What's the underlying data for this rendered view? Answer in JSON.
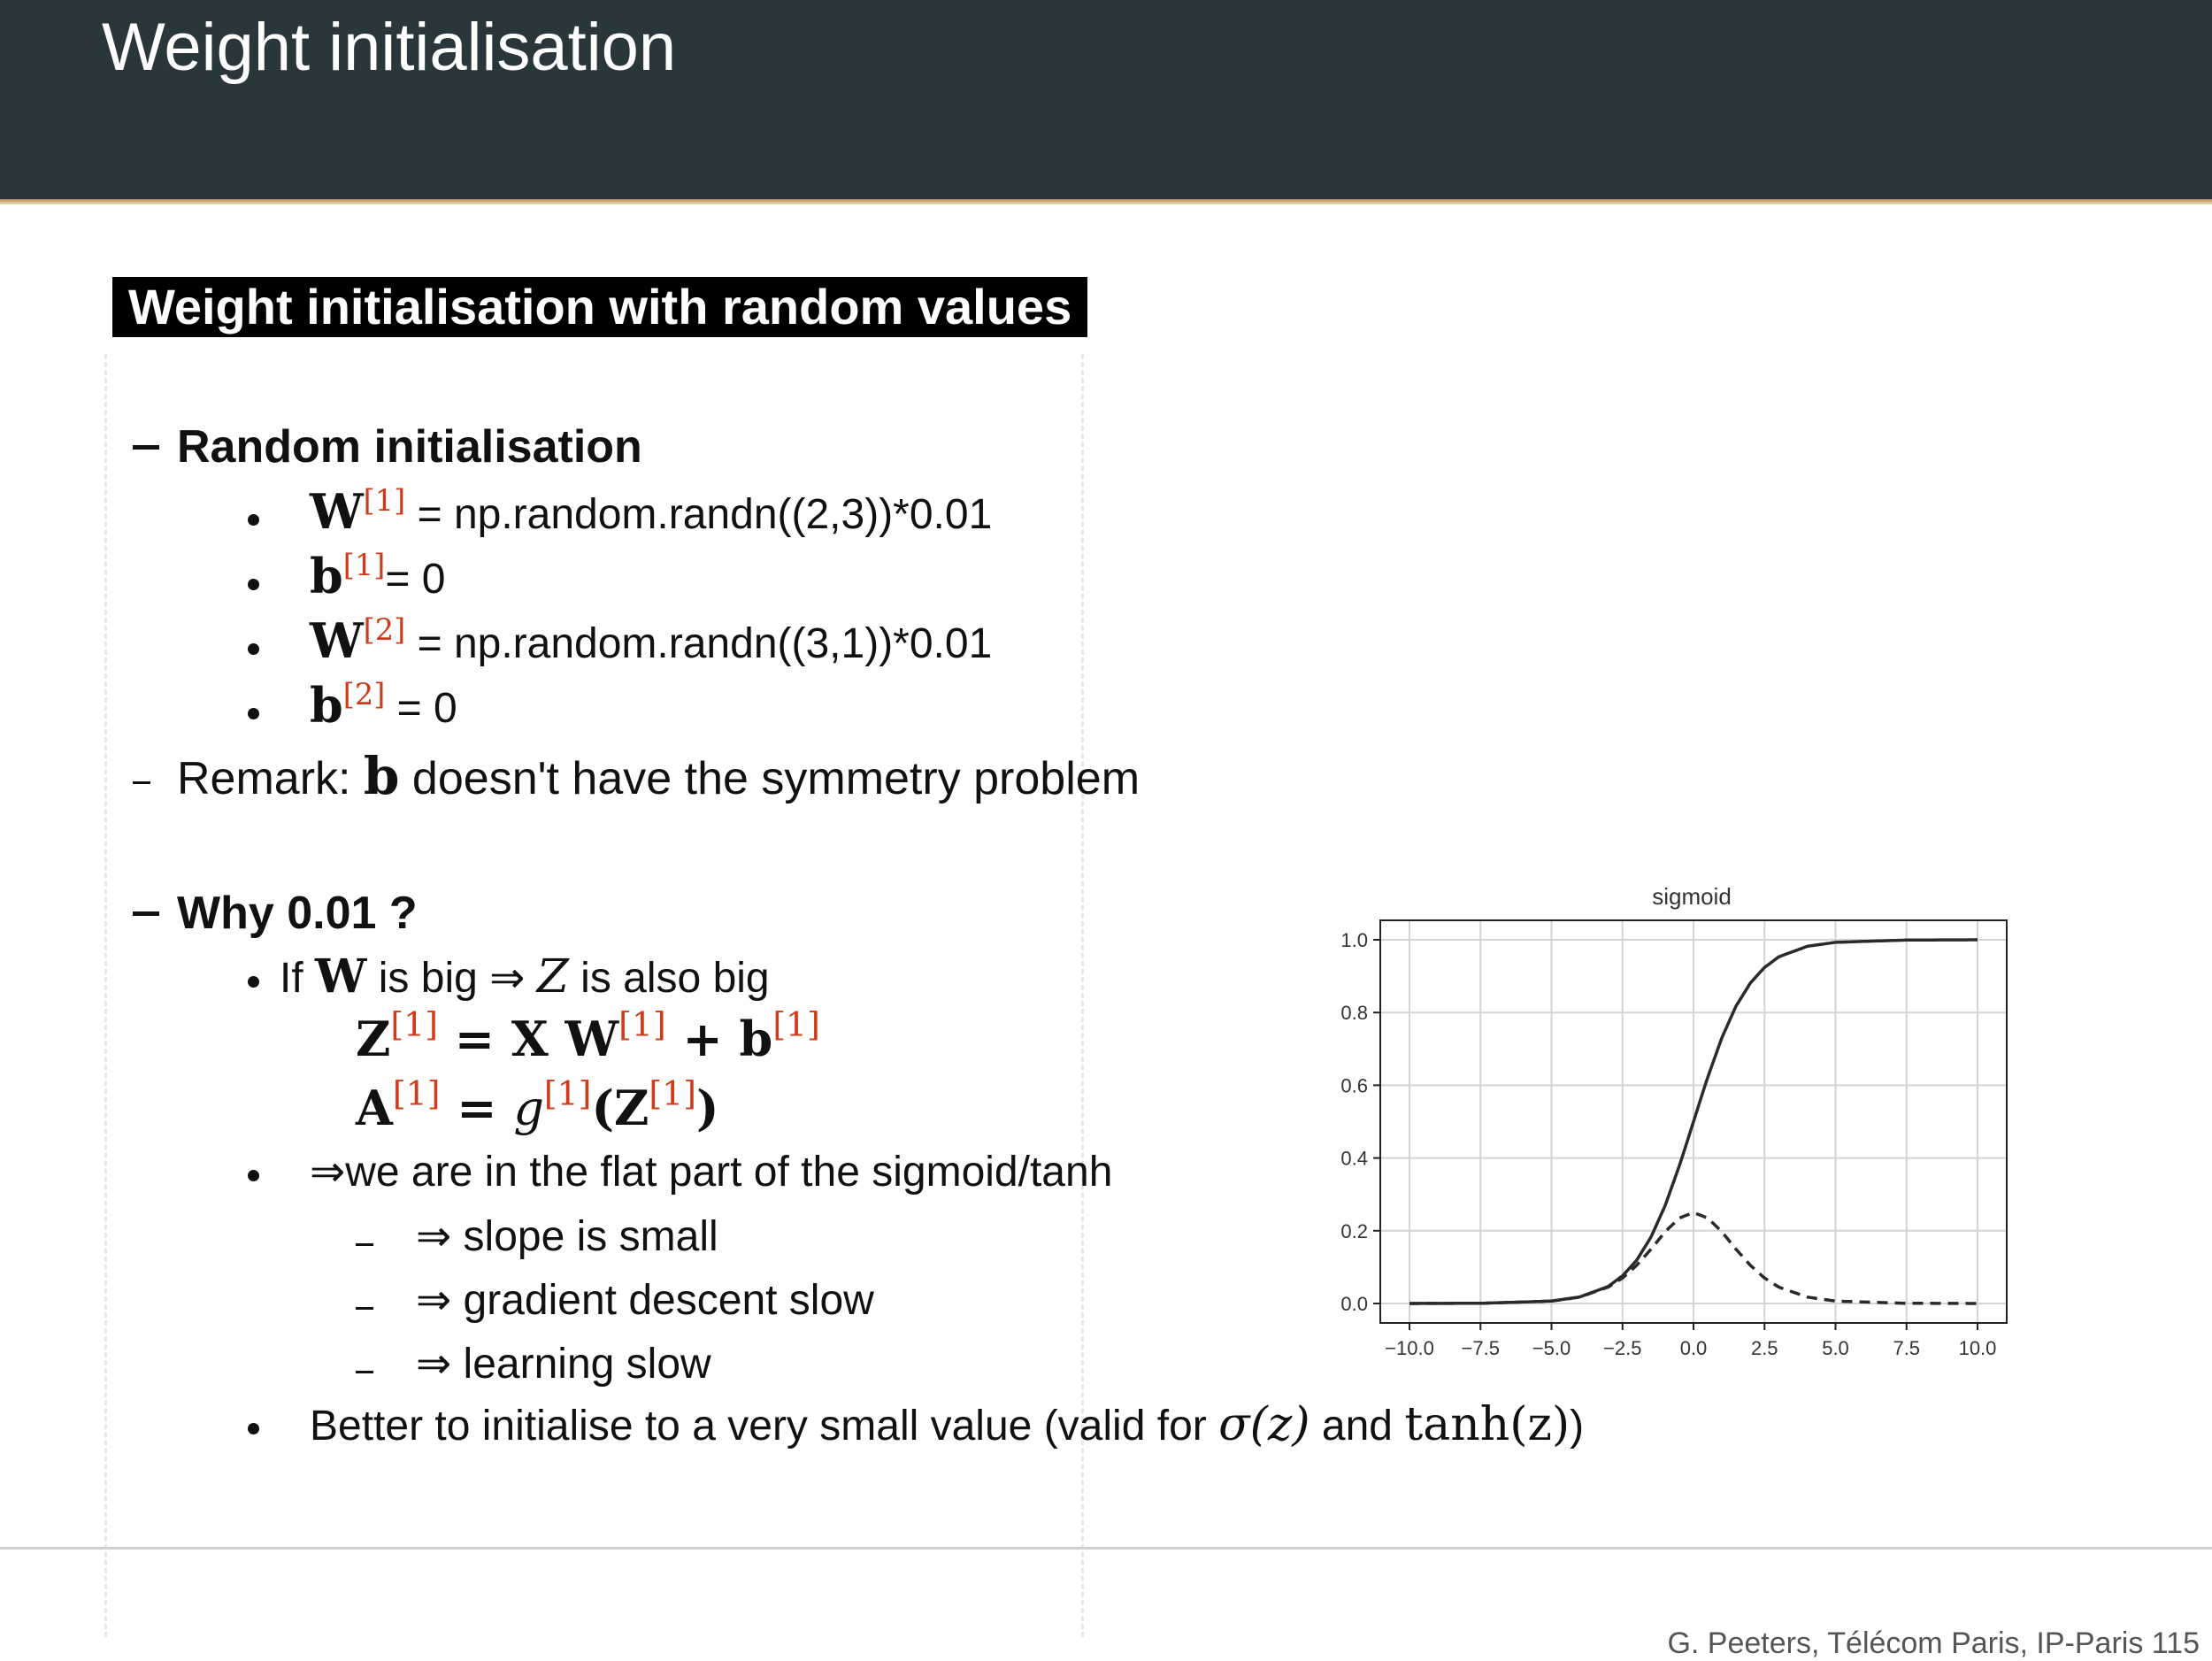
{
  "slide": {
    "title": "Weight initialisation"
  },
  "section_title": "Weight initialisation with random values",
  "random_init": {
    "heading": "Random initialisation",
    "items": [
      {
        "sym": "W",
        "sup": "[1]",
        "text": " = np.random.randn((2,3))*0.01"
      },
      {
        "sym": "b",
        "sup": "[1]",
        "text": "= 0"
      },
      {
        "sym": "W",
        "sup": "[2]",
        "text": " = np.random.randn((3,1))*0.01"
      },
      {
        "sym": "b",
        "sup": "[2]",
        "text": " = 0"
      }
    ],
    "remark": {
      "pre": "Remark: ",
      "sym": "b",
      "post": " doesn't have the symmetry problem"
    }
  },
  "why": {
    "heading": "Why 0.01 ?",
    "if_line": {
      "a": "If ",
      "w": "W",
      "b": " is big ⇒ ",
      "z": "Z",
      "c": " is also big"
    },
    "eq1": {
      "lhs": "Z",
      "lhs_sup": "[1]",
      "eq": " = X W",
      "w_sup": "[1]",
      "plus": " + b",
      "b_sup": "[1]"
    },
    "eq2": {
      "lhs": "A",
      "lhs_sup": "[1]",
      "eq": " = ",
      "g": "g",
      "g_sup": "[1]",
      "open": "(Z",
      "z_sup": "[1]",
      "close": ")"
    },
    "flat": "⇒we are in the flat part of the sigmoid/tanh",
    "sub": [
      "⇒ slope is small",
      "⇒ gradient descent slow",
      "⇒ learning slow"
    ],
    "better": {
      "pre": "Better to initialise to a very small value (valid for ",
      "sigma": "σ(z)",
      "mid": " and ",
      "tanh": "tanh(z)",
      "post": ")"
    }
  },
  "footer": "G. Peeters, Télécom Paris, IP-Paris 115",
  "chart_data": {
    "type": "line",
    "title": "sigmoid",
    "xlabel": "",
    "ylabel": "",
    "xlim": [
      -10,
      10
    ],
    "ylim": [
      0,
      1
    ],
    "x_ticks": [
      "−10.0",
      "−7.5",
      "−5.0",
      "−2.5",
      "0.0",
      "2.5",
      "5.0",
      "7.5",
      "10.0"
    ],
    "y_ticks": [
      "0.0",
      "0.2",
      "0.4",
      "0.6",
      "0.8",
      "1.0"
    ],
    "grid": true,
    "series": [
      {
        "style": "solid",
        "x": [
          -10,
          -7.5,
          -5,
          -4,
          -3,
          -2.5,
          -2,
          -1.5,
          -1,
          -0.5,
          0,
          0.5,
          1,
          1.5,
          2,
          2.5,
          3,
          4,
          5,
          7.5,
          10
        ],
        "values": [
          4.54e-05,
          0.00055,
          0.0067,
          0.018,
          0.047,
          0.076,
          0.119,
          0.182,
          0.269,
          0.378,
          0.5,
          0.622,
          0.731,
          0.818,
          0.881,
          0.924,
          0.953,
          0.982,
          0.993,
          0.9994,
          0.99995
        ]
      },
      {
        "style": "dashed",
        "x": [
          -10,
          -7.5,
          -5,
          -4,
          -3,
          -2.5,
          -2,
          -1.5,
          -1,
          -0.5,
          0,
          0.5,
          1,
          1.5,
          2,
          2.5,
          3,
          4,
          5,
          7.5,
          10
        ],
        "values": [
          4.54e-05,
          0.00055,
          0.0066,
          0.0177,
          0.0452,
          0.0701,
          0.105,
          0.149,
          0.197,
          0.235,
          0.25,
          0.235,
          0.197,
          0.149,
          0.105,
          0.0701,
          0.0452,
          0.0177,
          0.0066,
          0.00055,
          4.54e-05
        ]
      }
    ]
  }
}
